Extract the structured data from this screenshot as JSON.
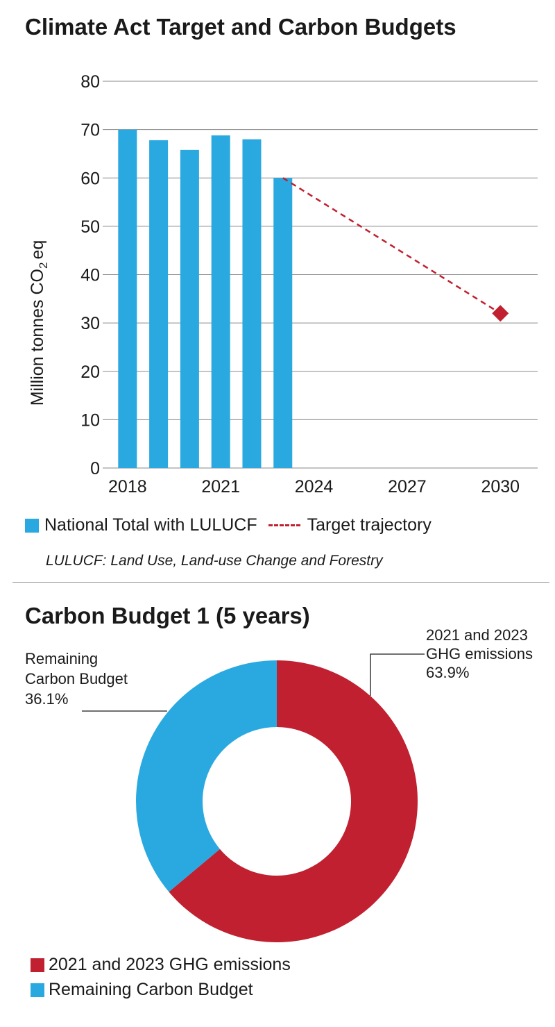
{
  "colors": {
    "blue": "#29a9e0",
    "red": "#c0202f",
    "grid": "#8a8a8a"
  },
  "chart_data": [
    {
      "type": "bar",
      "title": "Climate Act Target and Carbon Budgets",
      "ylabel": "Million tonnes  CO",
      "ylabel_sub": "2",
      "ylabel_suffix": "eq",
      "ylim": [
        0,
        80
      ],
      "yticks": [
        "0",
        "10",
        "20",
        "30",
        "40",
        "50",
        "60",
        "70",
        "80"
      ],
      "xlim": [
        2017.2,
        2031.2
      ],
      "xticks": [
        {
          "x": 2018,
          "label": "2018"
        },
        {
          "x": 2021,
          "label": "2021"
        },
        {
          "x": 2024,
          "label": "2024"
        },
        {
          "x": 2027,
          "label": "2027"
        },
        {
          "x": 2030,
          "label": "2030"
        }
      ],
      "series": [
        {
          "name": "National Total with LULUCF",
          "kind": "bar",
          "x": [
            2018,
            2019,
            2020,
            2021,
            2022,
            2023
          ],
          "values": [
            70,
            67.8,
            65.8,
            68.8,
            68.0,
            60.0
          ]
        },
        {
          "name": "Target trajectory",
          "kind": "line-dashed",
          "x": [
            2023,
            2030
          ],
          "values": [
            60,
            32
          ]
        }
      ],
      "target_marker": {
        "x": 2030,
        "value": 32
      },
      "legend": [
        "National Total with LULUCF",
        "Target trajectory"
      ],
      "footnote": "LULUCF: Land Use, Land-use Change and Forestry"
    },
    {
      "type": "pie",
      "title": "Carbon Budget 1 (5 years)",
      "slices": [
        {
          "label": "2021 and 2023 GHG emissions",
          "value": 63.9,
          "callout": [
            "2021 and 2023",
            "GHG emissions",
            "63.9%"
          ]
        },
        {
          "label": "Remaining Carbon Budget",
          "value": 36.1,
          "callout": [
            "Remaining",
            "Carbon Budget",
            "36.1%"
          ]
        }
      ],
      "legend": [
        "2021 and 2023 GHG emissions",
        "Remaining Carbon Budget"
      ]
    }
  ]
}
